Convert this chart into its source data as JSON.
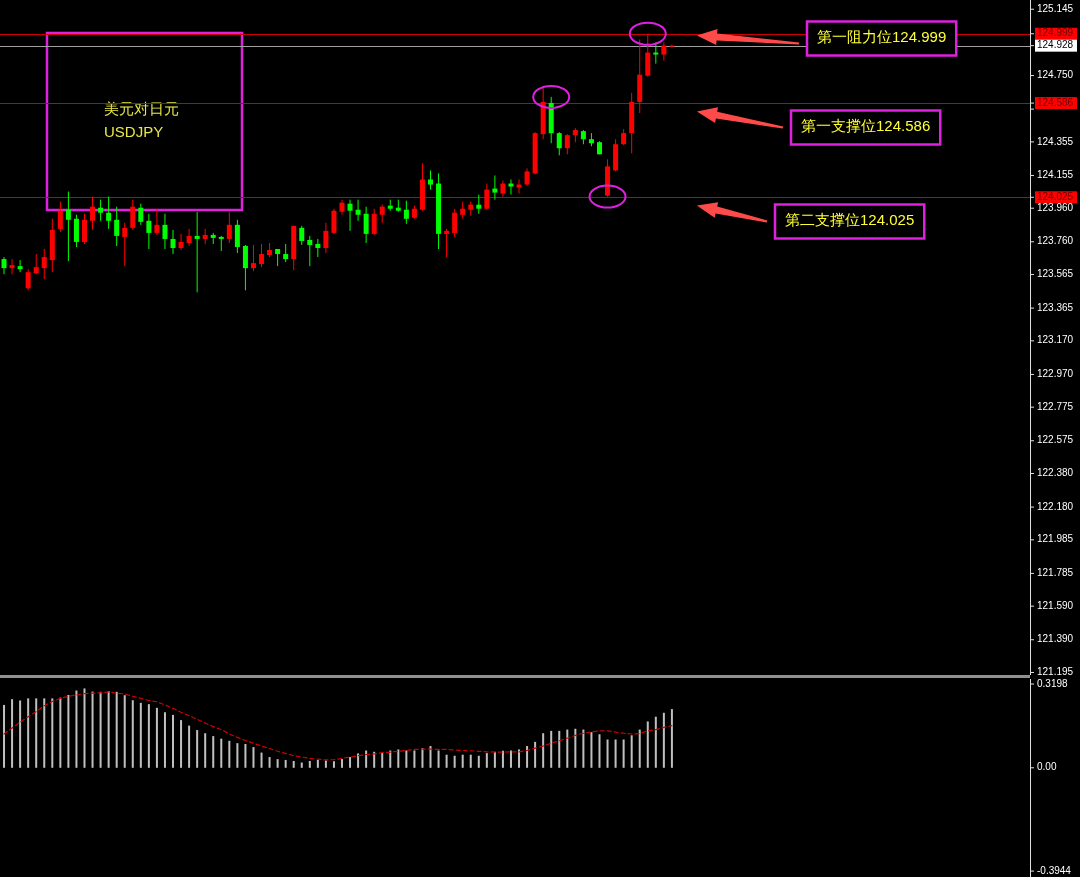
{
  "chart_data": [
    {
      "type": "candlestick",
      "title": "美元对日元",
      "subtitle": "USDJPY",
      "categories": [
        null,
        null,
        null,
        null,
        null,
        null,
        null,
        null,
        null,
        null,
        null,
        null,
        null,
        null,
        null,
        null,
        null,
        null,
        null,
        null,
        null,
        null,
        null,
        null,
        null,
        null,
        null,
        null,
        null,
        null,
        null,
        null,
        null,
        null,
        null,
        null,
        null,
        null,
        null,
        null,
        null,
        null,
        null,
        null,
        null,
        null,
        null,
        null,
        null,
        null,
        null,
        null,
        null,
        null,
        null,
        null,
        null,
        null,
        null,
        null,
        null,
        null,
        null,
        null,
        null,
        null,
        null,
        null,
        null,
        null,
        null,
        null,
        null,
        null,
        null,
        null,
        null,
        null,
        null,
        null,
        null,
        null,
        null,
        null,
        null,
        null,
        null,
        null,
        null,
        null,
        null,
        null,
        null,
        null,
        null,
        null,
        null,
        null,
        null,
        null,
        null,
        null,
        null,
        null,
        null,
        null,
        null,
        null,
        null,
        null,
        null,
        null,
        null,
        null,
        null,
        null,
        null,
        null,
        null,
        null,
        null,
        null,
        null,
        null,
        null,
        null,
        null,
        null
      ],
      "ohlc": [
        [
          123.657,
          123.669,
          123.567,
          123.603
        ],
        [
          123.603,
          123.657,
          123.567,
          123.621
        ],
        [
          123.615,
          123.651,
          123.579,
          123.597
        ],
        [
          123.483,
          123.597,
          123.471,
          123.579
        ],
        [
          123.573,
          123.687,
          123.567,
          123.609
        ],
        [
          123.603,
          123.717,
          123.537,
          123.669
        ],
        [
          123.651,
          123.897,
          123.579,
          123.831
        ],
        [
          123.837,
          123.999,
          123.819,
          123.945
        ],
        [
          123.951,
          124.059,
          123.645,
          123.891
        ],
        [
          123.897,
          123.921,
          123.729,
          123.759
        ],
        [
          123.759,
          123.927,
          123.747,
          123.891
        ],
        [
          123.885,
          124.029,
          123.831,
          123.969
        ],
        [
          123.963,
          124.011,
          123.885,
          123.933
        ],
        [
          123.933,
          124.029,
          123.837,
          123.885
        ],
        [
          123.891,
          123.969,
          123.735,
          123.795
        ],
        [
          123.789,
          123.873,
          123.615,
          123.843
        ],
        [
          123.843,
          124.011,
          123.831,
          123.969
        ],
        [
          123.963,
          123.987,
          123.861,
          123.879
        ],
        [
          123.885,
          123.927,
          123.717,
          123.813
        ],
        [
          123.813,
          123.957,
          123.801,
          123.861
        ],
        [
          123.861,
          123.927,
          123.717,
          123.777
        ],
        [
          123.777,
          123.831,
          123.687,
          123.723
        ],
        [
          123.723,
          123.807,
          123.711,
          123.759
        ],
        [
          123.753,
          123.837,
          123.735,
          123.795
        ],
        [
          123.795,
          123.939,
          123.459,
          123.777
        ],
        [
          123.777,
          123.837,
          123.747,
          123.801
        ],
        [
          123.801,
          123.813,
          123.747,
          123.783
        ],
        [
          123.789,
          123.795,
          123.705,
          123.777
        ],
        [
          123.777,
          123.939,
          123.753,
          123.861
        ],
        [
          123.861,
          123.891,
          123.693,
          123.729
        ],
        [
          123.735,
          123.741,
          123.471,
          123.603
        ],
        [
          123.603,
          123.741,
          123.585,
          123.633
        ],
        [
          123.627,
          123.747,
          123.609,
          123.687
        ],
        [
          123.681,
          123.753,
          123.669,
          123.711
        ],
        [
          123.717,
          123.717,
          123.615,
          123.687
        ],
        [
          123.687,
          123.747,
          123.639,
          123.657
        ],
        [
          123.657,
          123.855,
          123.591,
          123.855
        ],
        [
          123.843,
          123.855,
          123.741,
          123.765
        ],
        [
          123.771,
          123.795,
          123.615,
          123.741
        ],
        [
          123.747,
          123.777,
          123.669,
          123.723
        ],
        [
          123.723,
          123.873,
          123.693,
          123.825
        ],
        [
          123.813,
          123.957,
          123.807,
          123.945
        ],
        [
          123.939,
          124.011,
          123.921,
          123.993
        ],
        [
          123.987,
          124.011,
          123.825,
          123.945
        ],
        [
          123.951,
          124.011,
          123.885,
          123.921
        ],
        [
          123.927,
          123.969,
          123.753,
          123.807
        ],
        [
          123.807,
          123.957,
          123.801,
          123.927
        ],
        [
          123.921,
          123.981,
          123.873,
          123.969
        ],
        [
          123.975,
          124.011,
          123.945,
          123.957
        ],
        [
          123.963,
          124.011,
          123.939,
          123.945
        ],
        [
          123.951,
          124.005,
          123.867,
          123.897
        ],
        [
          123.903,
          123.975,
          123.897,
          123.957
        ],
        [
          123.951,
          124.227,
          123.945,
          124.131
        ],
        [
          124.131,
          124.185,
          124.071,
          124.101
        ],
        [
          124.107,
          124.167,
          123.717,
          123.807
        ],
        [
          123.807,
          123.837,
          123.669,
          123.825
        ],
        [
          123.813,
          123.957,
          123.789,
          123.933
        ],
        [
          123.921,
          123.999,
          123.897,
          123.957
        ],
        [
          123.951,
          123.999,
          123.915,
          123.981
        ],
        [
          123.981,
          124.041,
          123.927,
          123.957
        ],
        [
          123.957,
          124.107,
          123.951,
          124.071
        ],
        [
          124.077,
          124.155,
          124.011,
          124.053
        ],
        [
          124.047,
          124.125,
          124.029,
          124.107
        ],
        [
          124.107,
          124.131,
          124.041,
          124.089
        ],
        [
          124.083,
          124.131,
          124.047,
          124.101
        ],
        [
          124.101,
          124.197,
          124.095,
          124.179
        ],
        [
          124.167,
          124.413,
          124.161,
          124.407
        ],
        [
          124.401,
          124.683,
          124.371,
          124.593
        ],
        [
          124.587,
          124.623,
          124.347,
          124.407
        ],
        [
          124.407,
          124.413,
          124.275,
          124.317
        ],
        [
          124.317,
          124.401,
          124.281,
          124.395
        ],
        [
          124.395,
          124.437,
          124.353,
          124.425
        ],
        [
          124.419,
          124.425,
          124.341,
          124.371
        ],
        [
          124.371,
          124.407,
          124.329,
          124.347
        ],
        [
          124.353,
          124.359,
          124.281,
          124.281
        ],
        [
          124.035,
          124.251,
          124.029,
          124.209
        ],
        [
          124.185,
          124.371,
          124.179,
          124.341
        ],
        [
          124.341,
          124.431,
          124.335,
          124.407
        ],
        [
          124.407,
          124.647,
          124.287,
          124.593
        ],
        [
          124.593,
          124.965,
          124.527,
          124.755
        ],
        [
          124.749,
          124.999,
          124.743,
          124.887
        ],
        [
          124.887,
          124.947,
          124.821,
          124.875
        ],
        [
          124.875,
          124.947,
          124.839,
          124.929
        ],
        [
          124.923,
          124.935,
          124.917,
          124.928
        ],
        null,
        null,
        null,
        null,
        null,
        null,
        null,
        null,
        null,
        null,
        null,
        null,
        null,
        null,
        null,
        null,
        null,
        null,
        null,
        null,
        null,
        null,
        null,
        null,
        null,
        null,
        null,
        null,
        null,
        null,
        null,
        null,
        null,
        null,
        null,
        null,
        null,
        null,
        null,
        null,
        null,
        null,
        null,
        null
      ],
      "ylim": [
        121.18,
        125.2
      ],
      "yticks": [
        125.145,
        124.999,
        124.928,
        {
          "value": 124.75,
          "label": "124.750"
        },
        124.586,
        {
          "value": 124.55,
          "label": null
        },
        124.355,
        124.025,
        124.155,
        {
          "value": 123.96,
          "label": "123.960"
        },
        {
          "value": 123.76,
          "label": "123.760"
        },
        123.565,
        123.365,
        {
          "value": 123.17,
          "label": "123.170"
        },
        {
          "value": 122.97,
          "label": "122.970"
        },
        122.775,
        122.575,
        {
          "value": 122.38,
          "label": "122.380"
        },
        {
          "value": 122.18,
          "label": "122.180"
        },
        121.985,
        121.785,
        {
          "value": 121.59,
          "label": "121.590"
        },
        {
          "value": 121.39,
          "label": "121.390"
        },
        121.195
      ],
      "ref_lines": [
        {
          "axis": "y",
          "value": 124.999,
          "label": "第一阻力位124.999",
          "color": "#cc0000"
        },
        {
          "axis": "y",
          "value": 124.928,
          "color": "#a0a0a0"
        },
        {
          "axis": "y",
          "value": 124.586,
          "label": "第一支撑位124.586",
          "color": "#cc0000"
        },
        {
          "axis": "y",
          "value": 124.025,
          "label": "第二支撑位124.025",
          "color": "#cc0000"
        }
      ],
      "tick_labels": "y"
    },
    {
      "type": "bar",
      "categories": [
        null,
        null,
        null,
        null,
        null,
        null,
        null,
        null,
        null,
        null,
        null,
        null,
        null,
        null,
        null,
        null,
        null,
        null,
        null,
        null,
        null,
        null,
        null,
        null,
        null,
        null,
        null,
        null,
        null,
        null,
        null,
        null,
        null,
        null,
        null,
        null,
        null,
        null,
        null,
        null,
        null,
        null,
        null,
        null,
        null,
        null,
        null,
        null,
        null,
        null,
        null,
        null,
        null,
        null,
        null,
        null,
        null,
        null,
        null,
        null,
        null,
        null,
        null,
        null,
        null,
        null,
        null,
        null,
        null,
        null,
        null,
        null,
        null,
        null,
        null,
        null,
        null,
        null,
        null,
        null,
        null,
        null,
        null,
        null,
        null,
        null,
        null,
        null,
        null,
        null,
        null,
        null,
        null,
        null,
        null,
        null,
        null,
        null,
        null,
        null,
        null,
        null,
        null,
        null,
        null,
        null,
        null,
        null,
        null,
        null,
        null,
        null,
        null,
        null,
        null,
        null,
        null,
        null,
        null,
        null,
        null,
        null,
        null,
        null,
        null,
        null,
        null,
        null
      ],
      "series": [
        {
          "type": "bar",
          "color": "#c0c0c0",
          "values": [
            0.24,
            0.262,
            0.257,
            0.265,
            0.265,
            0.265,
            0.265,
            0.268,
            0.278,
            0.295,
            0.303,
            0.291,
            0.29,
            0.293,
            0.29,
            0.277,
            0.258,
            0.248,
            0.243,
            0.229,
            0.212,
            0.202,
            0.182,
            0.161,
            0.144,
            0.132,
            0.121,
            0.111,
            0.103,
            0.094,
            0.091,
            0.079,
            0.058,
            0.041,
            0.033,
            0.03,
            0.026,
            0.02,
            0.026,
            0.03,
            0.028,
            0.025,
            0.033,
            0.041,
            0.055,
            0.066,
            0.061,
            0.058,
            0.066,
            0.07,
            0.066,
            0.066,
            0.075,
            0.083,
            0.066,
            0.05,
            0.046,
            0.05,
            0.05,
            0.046,
            0.056,
            0.061,
            0.065,
            0.066,
            0.07,
            0.083,
            0.099,
            0.132,
            0.141,
            0.141,
            0.146,
            0.149,
            0.146,
            0.136,
            0.128,
            0.108,
            0.108,
            0.108,
            0.124,
            0.146,
            0.177,
            0.195,
            0.21,
            0.224,
            null,
            null,
            null,
            null,
            null,
            null,
            null,
            null,
            null,
            null,
            null,
            null,
            null,
            null,
            null,
            null,
            null,
            null,
            null,
            null,
            null,
            null,
            null,
            null,
            null,
            null,
            null,
            null,
            null,
            null,
            null,
            null,
            null,
            null,
            null,
            null,
            null,
            null,
            null,
            null,
            null,
            null,
            null,
            null
          ]
        },
        {
          "type": "line",
          "color": "#cc0000",
          "line_style": "dashed",
          "values": [
            0.129,
            0.152,
            0.174,
            0.195,
            0.215,
            0.237,
            0.253,
            0.265,
            0.273,
            0.278,
            0.283,
            0.285,
            0.286,
            0.29,
            0.285,
            0.282,
            0.273,
            0.265,
            0.257,
            0.252,
            0.24,
            0.227,
            0.212,
            0.199,
            0.185,
            0.171,
            0.157,
            0.146,
            0.129,
            0.116,
            0.104,
            0.094,
            0.083,
            0.073,
            0.063,
            0.055,
            0.046,
            0.041,
            0.036,
            0.033,
            0.03,
            0.031,
            0.036,
            0.041,
            0.046,
            0.05,
            0.053,
            0.058,
            0.06,
            0.063,
            0.066,
            0.07,
            0.071,
            0.071,
            0.07,
            0.07,
            0.068,
            0.066,
            0.065,
            0.063,
            0.061,
            0.06,
            0.06,
            0.061,
            0.061,
            0.066,
            0.075,
            0.083,
            0.094,
            0.103,
            0.113,
            0.124,
            0.132,
            0.137,
            0.141,
            0.141,
            0.136,
            0.132,
            0.129,
            0.131,
            0.141,
            0.146,
            0.154,
            0.161,
            null,
            null,
            null,
            null,
            null,
            null,
            null,
            null,
            null,
            null,
            null,
            null,
            null,
            null,
            null,
            null,
            null,
            null,
            null,
            null,
            null,
            null,
            null,
            null,
            null,
            null,
            null,
            null,
            null,
            null,
            null,
            null,
            null,
            null,
            null,
            null,
            null,
            null,
            null,
            null,
            null,
            null,
            null,
            null
          ]
        }
      ],
      "ylim": [
        -0.417,
        0.339
      ],
      "yticks": [
        0.3198,
        {
          "value": 0,
          "label": "0.00"
        },
        -0.3944
      ],
      "tick_labels": "y"
    }
  ]
}
